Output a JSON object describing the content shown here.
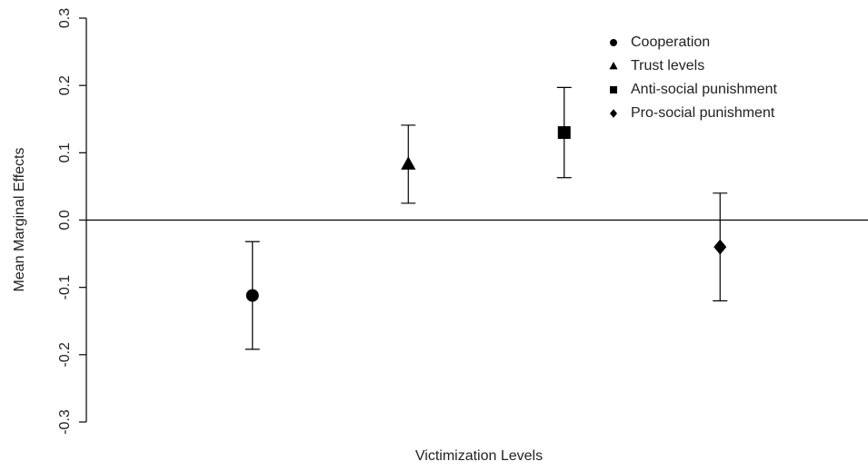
{
  "chart_data": {
    "type": "errorbar",
    "ylabel": "Mean Marginal Effects",
    "xlabel": "Victimization Levels",
    "categories": [
      null,
      null,
      null,
      null
    ],
    "ylim": [
      -0.3,
      0.3
    ],
    "yticks": [
      -0.3,
      -0.2,
      -0.1,
      {
        "value": 0,
        "label": "0.0"
      },
      0.1,
      0.2,
      0.3
    ],
    "hline": 0,
    "legend": "upper right",
    "series": [
      {
        "name": "Cooperation",
        "marker": "circle",
        "color": "#000000",
        "values": [
          -0.112,
          null,
          null,
          null
        ],
        "errors": [
          0.08,
          null,
          null,
          null
        ]
      },
      {
        "name": "Trust levels",
        "marker": "triangle",
        "color": "#000000",
        "values": [
          null,
          0.083,
          null,
          null
        ],
        "errors": [
          null,
          0.058,
          null,
          null
        ]
      },
      {
        "name": "Anti-social punishment",
        "marker": "square",
        "color": "#000000",
        "values": [
          null,
          null,
          0.13,
          null
        ],
        "errors": [
          null,
          null,
          0.067,
          null
        ]
      },
      {
        "name": "Pro-social punishment",
        "marker": "diamond",
        "color": "#000000",
        "values": [
          null,
          null,
          null,
          -0.04
        ],
        "errors": [
          null,
          null,
          null,
          0.08
        ]
      }
    ]
  }
}
